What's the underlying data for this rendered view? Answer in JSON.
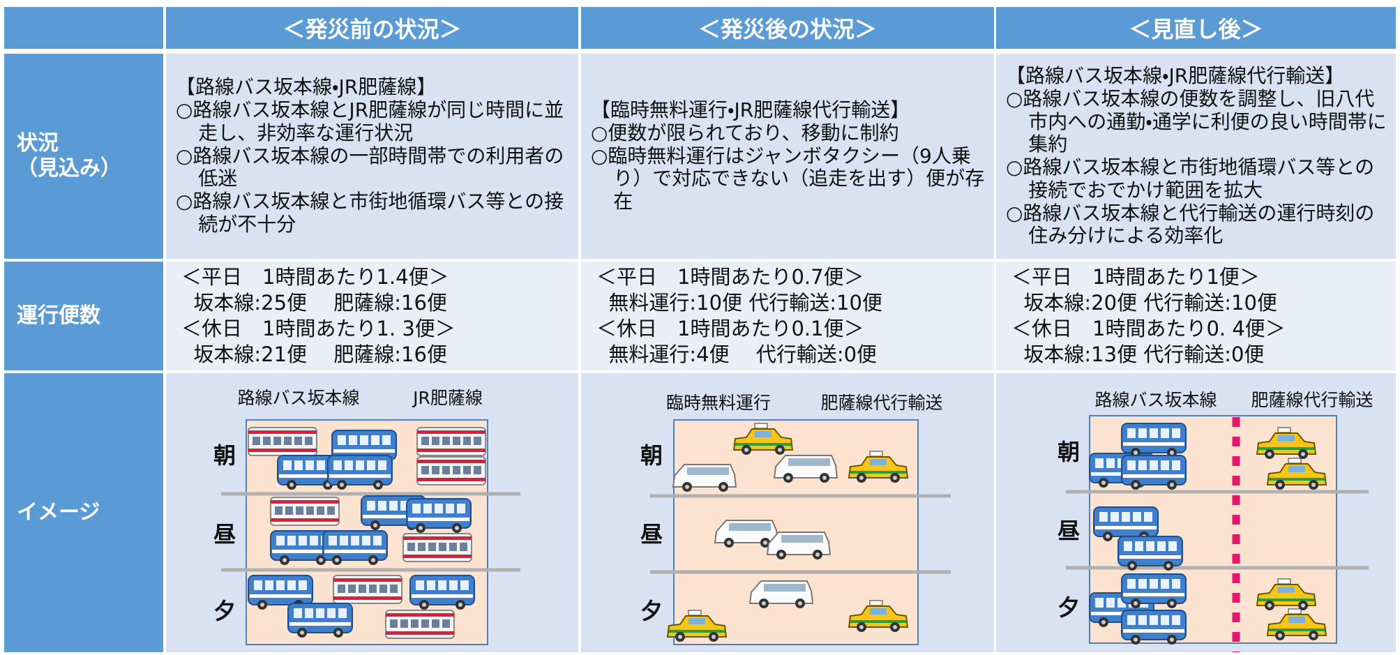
{
  "header": {
    "columns": [
      "＜発災前の状況＞",
      "＜発災後の状況＞",
      "＜見直し後＞"
    ]
  },
  "rows": [
    {
      "label": [
        "状況",
        "（見込み）"
      ],
      "cells": [
        {
          "lines": [
            "【路線バス坂本線・JR肥薩線】",
            "○路線バス坂本線とJR肥薩線が同じ時間に並走し、非効率な運行状況",
            "○路線バス坂本線の一部時間帯での利用者の低迷",
            "○路線バス坂本線と市街地循環バス等との接続が不十分"
          ]
        },
        {
          "lines": [
            "【臨時無料運行・JR肥薩線代行輸送】",
            "○便数が限られており、移動に制約",
            "○臨時無料運行はジャンボタクシー（9人乗り）で対応できない（追走を出す）便が存在"
          ]
        },
        {
          "lines": [
            "【路線バス坂本線・JR肥薩線代行輸送】",
            "○路線バス坂本線の便数を調整し、旧八代市内への通勤・通学に利便の良い時間帯に集約",
            "○路線バス坂本線と市街地循環バス等との接続でおでかけ範囲を拡大",
            "○路線バス坂本線と代行輸送の運行時刻の住み分けによる効率化"
          ]
        }
      ]
    },
    {
      "label": [
        "運行便数"
      ],
      "cells": [
        {
          "lines": [
            "＜平日　1時間あたり1.4便＞",
            "坂本線:25便　 肥薩線:16便",
            "＜休日　1時間あたり1. 3便＞",
            "坂本線:21便　 肥薩線:16便"
          ]
        },
        {
          "lines": [
            "＜平日　1時間あたり0.7便＞",
            "無料運行:10便 代行輸送:10便",
            "＜休日　1時間あたり0.1便＞",
            "無料運行:4便　 代行輸送:0便"
          ]
        },
        {
          "lines": [
            "＜平日　1時間あたり1便＞",
            "坂本線:20便 代行輸送:10便",
            "＜休日　1時間あたり0. 4便＞",
            "坂本線:13便 代行輸送:0便"
          ]
        }
      ]
    },
    {
      "label": [
        "イメージ"
      ],
      "cells": [
        {
          "labels": [
            "路線バス坂本線",
            "JR肥薩線"
          ],
          "periods": [
            "朝",
            "昼",
            "夕"
          ]
        },
        {
          "labels": [
            "臨時無料運行",
            "肥薩線代行輸送"
          ],
          "periods": [
            "朝",
            "昼",
            "夕"
          ]
        },
        {
          "labels": [
            "路線バス坂本線",
            "肥薩線代行輸送"
          ],
          "periods": [
            "朝",
            "昼",
            "夕"
          ]
        }
      ]
    }
  ]
}
